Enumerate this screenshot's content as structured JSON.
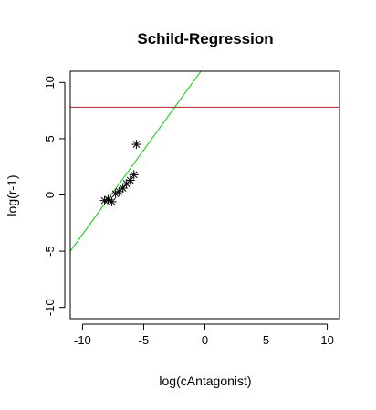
{
  "chart_data": {
    "type": "scatter",
    "title": "Schild-Regression",
    "xlabel": "log(cAntagonist)",
    "ylabel": "log(r-1)",
    "xlim": [
      -11,
      11
    ],
    "ylim": [
      -11,
      11
    ],
    "x_ticks": [
      -10,
      -5,
      0,
      5,
      10
    ],
    "y_ticks": [
      -10,
      -5,
      0,
      5,
      10
    ],
    "grid": false,
    "points": [
      {
        "x": -8.2,
        "y": -0.5
      },
      {
        "x": -7.9,
        "y": -0.4
      },
      {
        "x": -7.6,
        "y": -0.6
      },
      {
        "x": -7.3,
        "y": 0.1
      },
      {
        "x": -7.0,
        "y": 0.3
      },
      {
        "x": -6.7,
        "y": 0.6
      },
      {
        "x": -6.4,
        "y": 1.0
      },
      {
        "x": -6.1,
        "y": 1.3
      },
      {
        "x": -5.8,
        "y": 1.8
      },
      {
        "x": -5.6,
        "y": 4.5
      }
    ],
    "marker": "asterisk",
    "lines": [
      {
        "kind": "regression",
        "color": "#00cc00",
        "slope": 1.5,
        "intercept": 11.5
      },
      {
        "kind": "horizontal",
        "color": "#b22222",
        "y": 7.8
      }
    ]
  }
}
